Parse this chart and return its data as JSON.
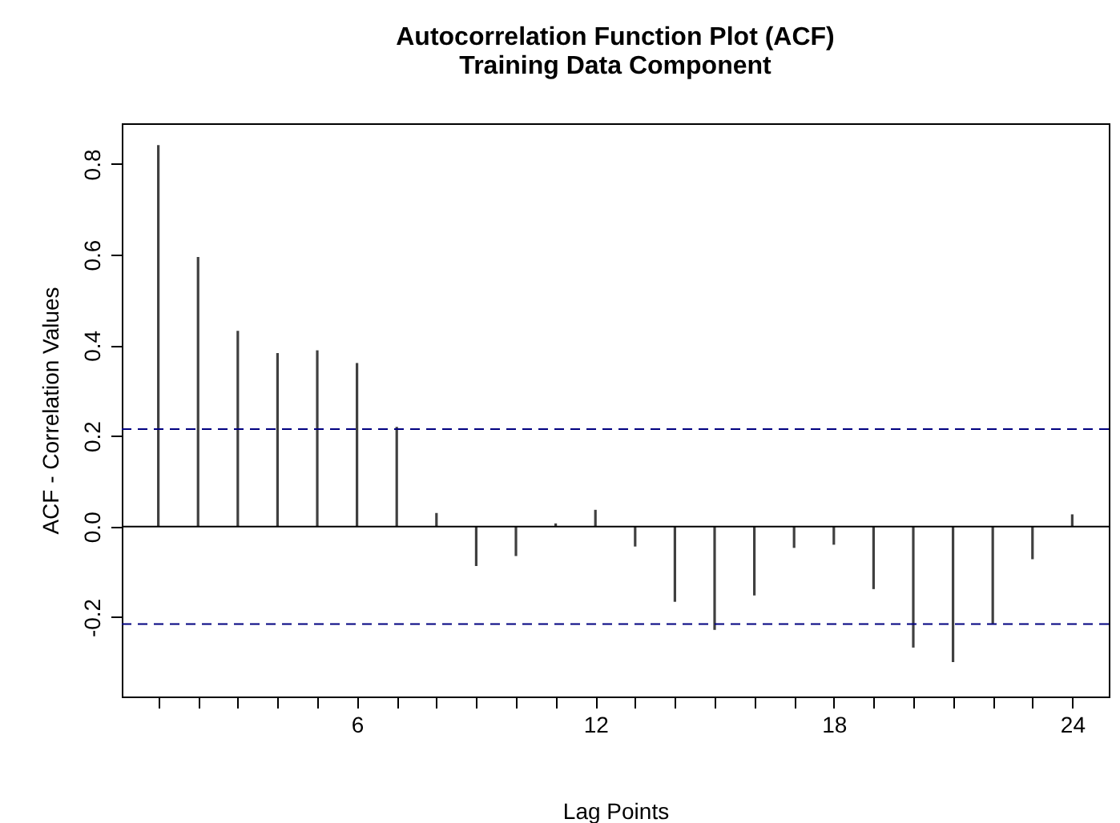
{
  "chart_data": {
    "type": "bar",
    "title": "Autocorrelation Function Plot (ACF)",
    "subtitle": "Training Data Component",
    "xlabel": "Lag Points",
    "ylabel": "ACF - Correlation Values",
    "x": [
      1,
      2,
      3,
      4,
      5,
      6,
      7,
      8,
      9,
      10,
      11,
      12,
      13,
      14,
      15,
      16,
      17,
      18,
      19,
      20,
      21,
      22,
      23,
      24
    ],
    "values": [
      0.842,
      0.595,
      0.432,
      0.383,
      0.389,
      0.361,
      0.22,
      0.03,
      -0.087,
      -0.065,
      0.007,
      0.037,
      -0.044,
      -0.166,
      -0.228,
      -0.152,
      -0.047,
      -0.04,
      -0.138,
      -0.267,
      -0.299,
      -0.214,
      -0.072,
      0.027
    ],
    "color": "#404040",
    "xlim": [
      0.08,
      24.92
    ],
    "xticks": [
      {
        "value": 1,
        "label": null
      },
      {
        "value": 2,
        "label": null
      },
      {
        "value": 3,
        "label": null
      },
      {
        "value": 4,
        "label": null
      },
      {
        "value": 5,
        "label": null
      },
      6,
      {
        "value": 7,
        "label": null
      },
      {
        "value": 8,
        "label": null
      },
      {
        "value": 9,
        "label": null
      },
      {
        "value": 10,
        "label": null
      },
      {
        "value": 11,
        "label": null
      },
      12,
      {
        "value": 13,
        "label": null
      },
      {
        "value": 14,
        "label": null
      },
      {
        "value": 15,
        "label": null
      },
      {
        "value": 16,
        "label": null
      },
      {
        "value": 17,
        "label": null
      },
      18,
      {
        "value": 19,
        "label": null
      },
      {
        "value": 20,
        "label": null
      },
      {
        "value": 21,
        "label": null
      },
      {
        "value": 22,
        "label": null
      },
      {
        "value": 23,
        "label": null
      },
      24
    ],
    "ylim": [
      -0.375,
      0.89
    ],
    "yticks": [
      {
        "value": -0.2,
        "label": "-0.2"
      },
      {
        "value": 0,
        "label": "0.0"
      },
      {
        "value": 0.2,
        "label": "0.2"
      },
      {
        "value": 0.4,
        "label": "0.4"
      },
      {
        "value": 0.6,
        "label": "0.6"
      },
      {
        "value": 0.8,
        "label": "0.8"
      }
    ],
    "ref_lines": [
      {
        "axis": "y",
        "value": 0,
        "color": "#000000",
        "line_style": "solid"
      },
      {
        "axis": "y",
        "value": 0.215,
        "color": "#000080",
        "line_style": "dashed"
      },
      {
        "axis": "y",
        "value": -0.215,
        "color": "#000080",
        "line_style": "dashed"
      }
    ],
    "grid": false
  }
}
